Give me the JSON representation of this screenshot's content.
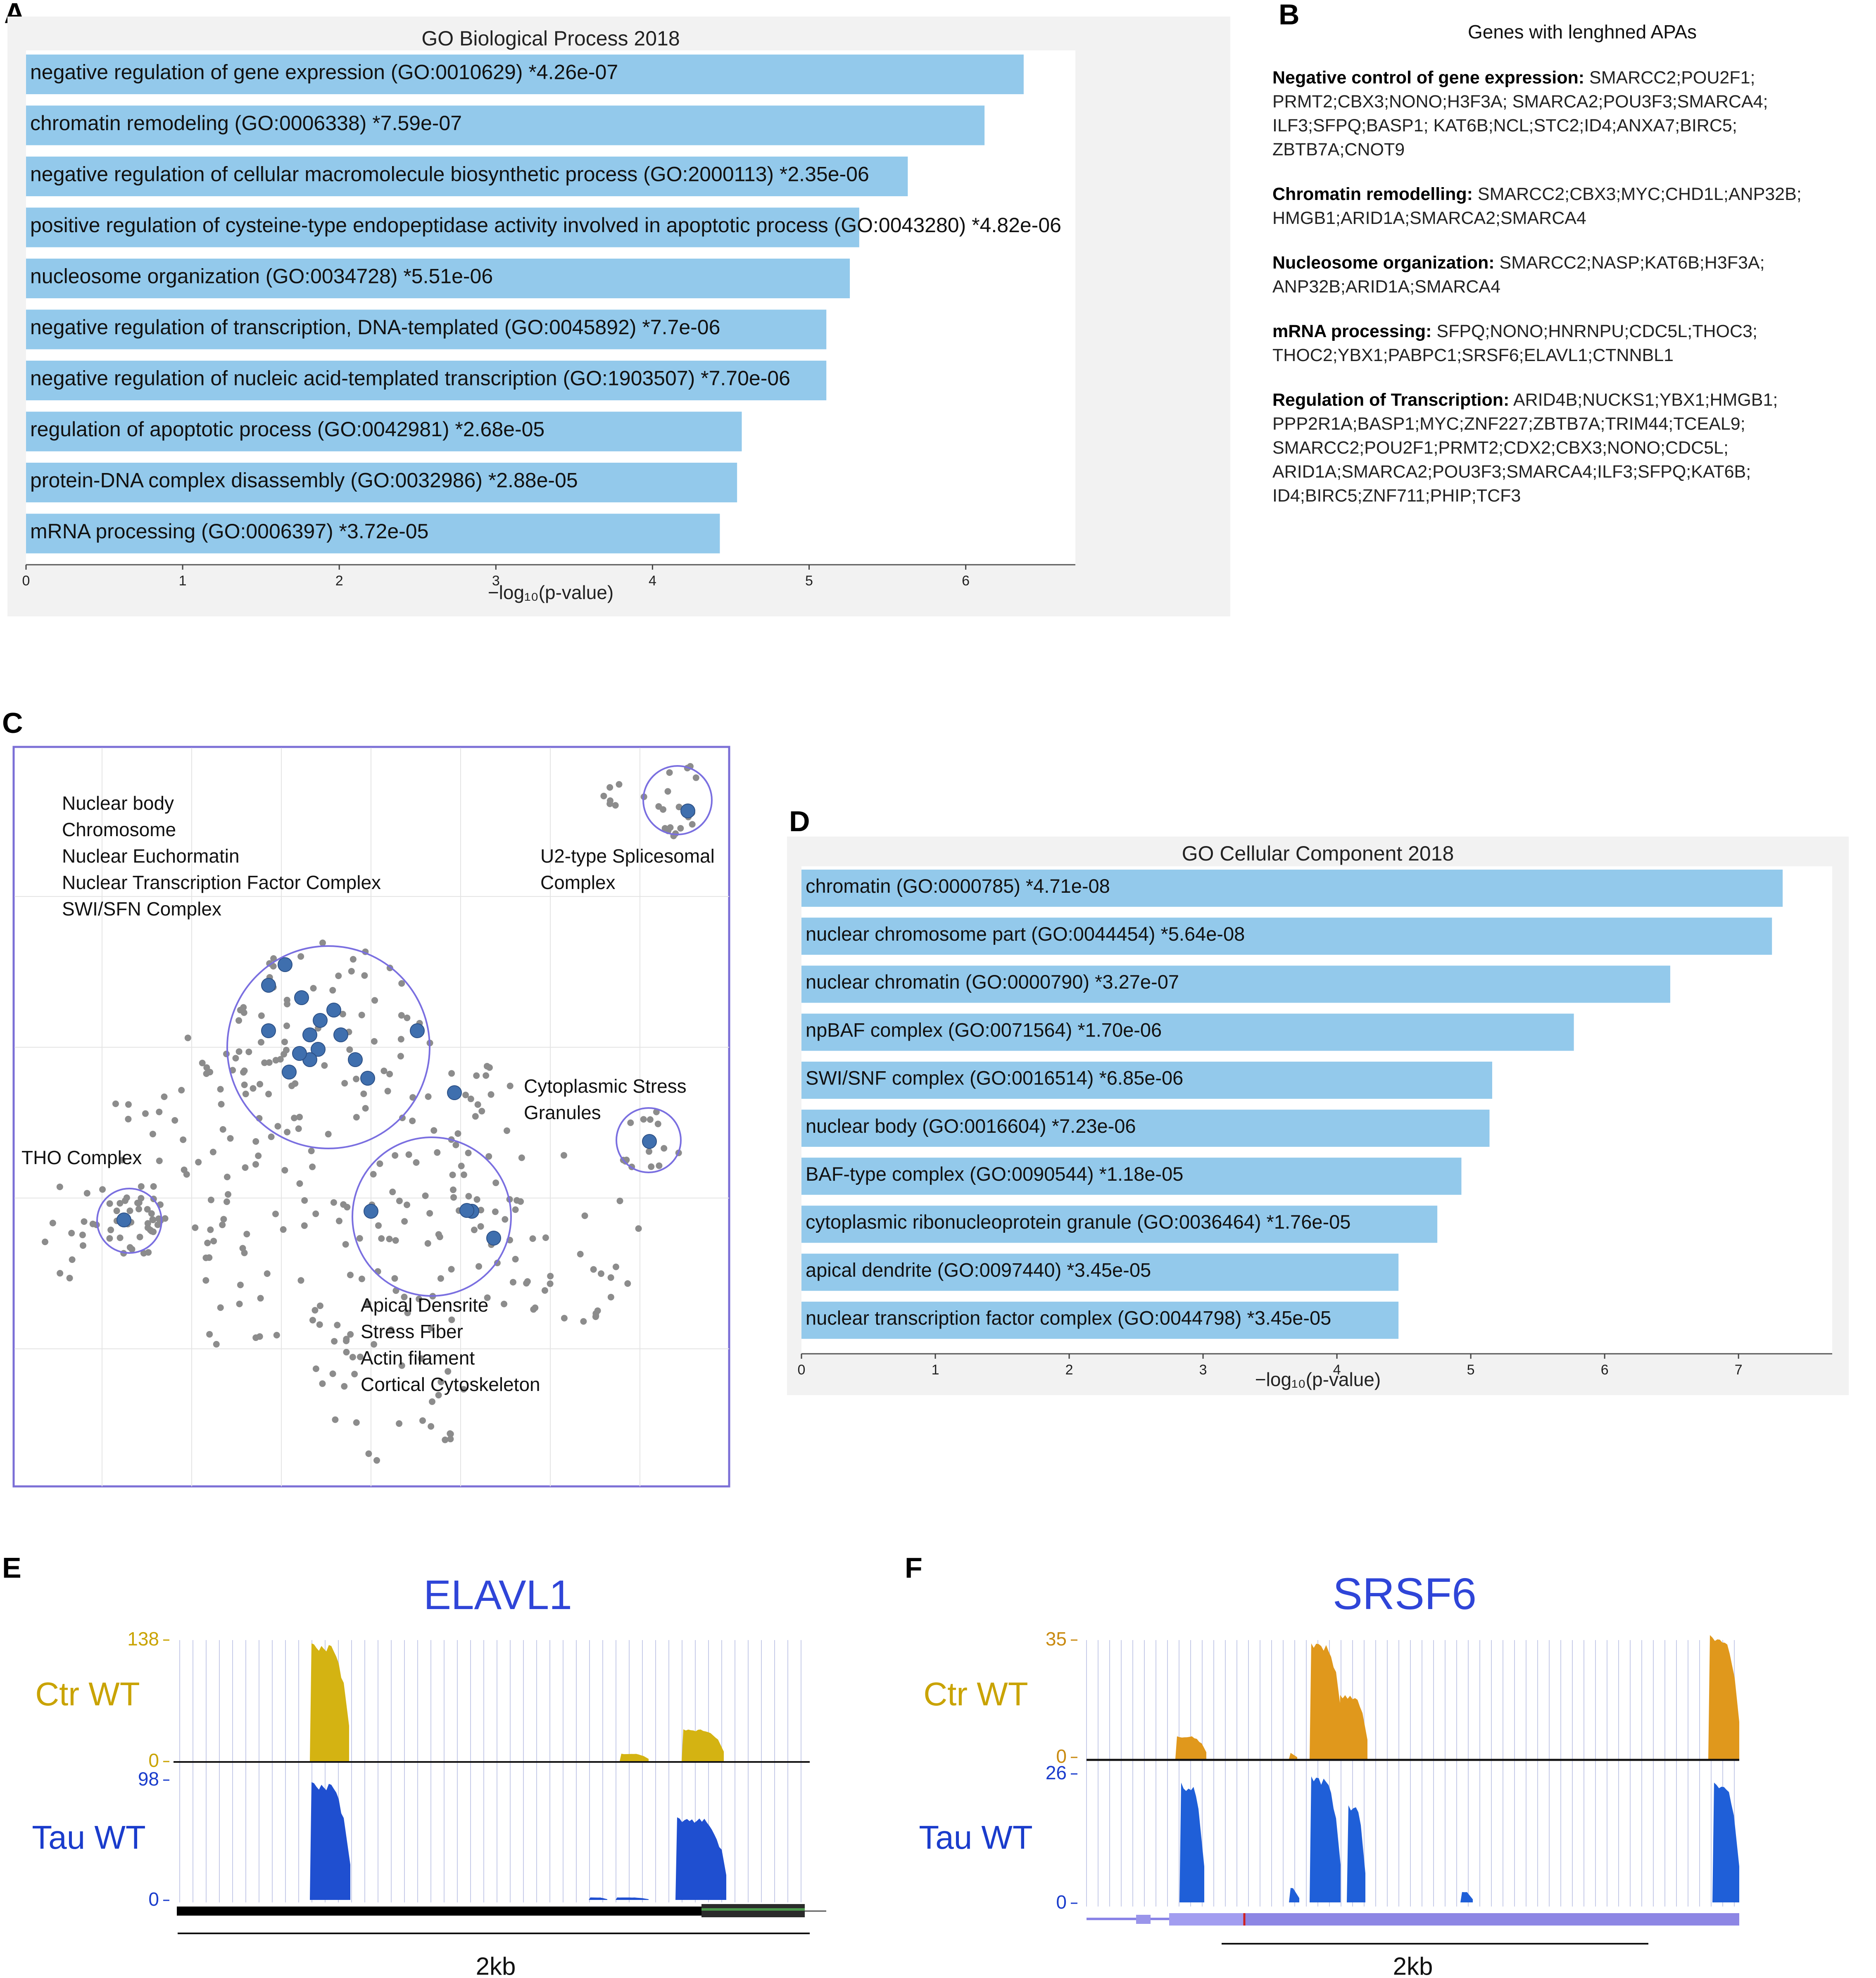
{
  "panel_letters": [
    "A",
    "B",
    "C",
    "D",
    "E",
    "F"
  ],
  "chart_data": [
    {
      "panel": "A",
      "type": "bar",
      "orientation": "horizontal",
      "title": "GO Biological Process 2018",
      "xlabel": "−log₁₀(p-value)",
      "xlim": [
        0,
        6.7
      ],
      "xticks": [
        "0",
        "1",
        "2",
        "3",
        "4",
        "5",
        "6"
      ],
      "categories": [
        "negative regulation of gene expression (GO:0010629)  *4.26e-07",
        "chromatin remodeling (GO:0006338)  *7.59e-07",
        "negative regulation of cellular macromolecule biosynthetic process (GO:2000113)  *2.35e-06",
        "positive regulation of cysteine-type endopeptidase activity involved in apoptotic process (GO:0043280)  *4.82e-06",
        "nucleosome organization (GO:0034728)  *5.51e-06",
        "negative regulation of transcription, DNA-templated (GO:0045892)  *7.7e-06",
        "negative regulation of nucleic acid-templated transcription (GO:1903507)  *7.70e-06",
        "regulation of apoptotic process (GO:0042981)  *2.68e-05",
        "protein-DNA complex disassembly (GO:0032986)  *2.88e-05",
        "mRNA processing (GO:0006397)  *3.72e-05"
      ],
      "values": [
        6.37,
        6.12,
        5.63,
        5.32,
        5.26,
        5.11,
        5.11,
        4.57,
        4.54,
        4.43
      ]
    },
    {
      "panel": "D",
      "type": "bar",
      "orientation": "horizontal",
      "title": "GO Cellular Component 2018",
      "xlabel": "−log₁₀(p-value)",
      "xlim": [
        0,
        7.7
      ],
      "xticks": [
        "0",
        "1",
        "2",
        "3",
        "4",
        "5",
        "6",
        "7"
      ],
      "categories": [
        "chromatin (GO:0000785)  *4.71e-08",
        "nuclear chromosome part (GO:0044454)  *5.64e-08",
        "nuclear chromatin (GO:0000790)  *3.27e-07",
        "npBAF complex (GO:0071564)  *1.70e-06",
        "SWI/SNF complex (GO:0016514)  *6.85e-06",
        "nuclear body (GO:0016604)  *7.23e-06",
        "BAF-type complex (GO:0090544)  *1.18e-05",
        "cytoplasmic ribonucleoprotein granule (GO:0036464)  *1.76e-05",
        "apical dendrite (GO:0097440)  *3.45e-05",
        "nuclear transcription factor complex (GO:0044798)  *3.45e-05"
      ],
      "values": [
        7.33,
        7.25,
        6.49,
        5.77,
        5.16,
        5.14,
        4.93,
        4.75,
        4.46,
        4.46
      ]
    },
    {
      "panel": "C",
      "type": "scatter",
      "title": "",
      "cluster_labels": [
        [
          "Nuclear body",
          "Chromosome",
          "Nuclear Euchormatin",
          "Nuclear Transcription Factor Complex",
          "SWI/SFN Complex"
        ],
        [
          "U2-type Splicesomal",
          "Complex"
        ],
        [
          "Cytoplasmic Stress",
          "Granules"
        ],
        [
          "THO Complex"
        ],
        [
          "Apical Densrite",
          "Stress Fiber",
          "Actin filament",
          "Cortical Cytoskeleton"
        ]
      ]
    },
    {
      "panel": "E",
      "type": "area",
      "gene": "ELAVL1",
      "tracks": [
        {
          "name": "Ctr WT",
          "ymax": "138",
          "ymin": "0",
          "color": "#d4b312"
        },
        {
          "name": "Tau WT",
          "ymax": "98",
          "ymin": "0",
          "color": "#1f4fd0"
        }
      ],
      "scale_label": "2kb"
    },
    {
      "panel": "F",
      "type": "area",
      "gene": "SRSF6",
      "tracks": [
        {
          "name": "Ctr WT",
          "ymax": "35",
          "ymin": "0",
          "color": "#e0981c"
        },
        {
          "name": "Tau WT",
          "ymax": "26",
          "ymin": "0",
          "color": "#1f5fd8"
        }
      ],
      "scale_label": "2kb"
    }
  ],
  "panel_b": {
    "heading": "Genes with lenghned APAs",
    "groups": [
      {
        "term": "Negative control of gene expression:",
        "genes": " SMARCC2;POU2F1; PRMT2;CBX3;NONO;H3F3A; SMARCA2;POU3F3;SMARCA4; ILF3;SFPQ;BASP1; KAT6B;NCL;STC2;ID4;ANXA7;BIRC5; ZBTB7A;CNOT9"
      },
      {
        "term": "Chromatin remodelling:",
        "genes": " SMARCC2;CBX3;MYC;CHD1L;ANP32B; HMGB1;ARID1A;SMARCA2;SMARCA4"
      },
      {
        "term": "Nucleosome organization:",
        "genes": " SMARCC2;NASP;KAT6B;H3F3A; ANP32B;ARID1A;SMARCA4"
      },
      {
        "term": "mRNA processing:",
        "genes": " SFPQ;NONO;HNRNPU;CDC5L;THOC3; THOC2;YBX1;PABPC1;SRSF6;ELAVL1;CTNNBL1"
      },
      {
        "term": "Regulation of Transcription:",
        "genes": " ARID4B;NUCKS1;YBX1;HMGB1; PPP2R1A;BASP1;MYC;ZNF227;ZBTB7A;TRIM44;TCEAL9; SMARCC2;POU2F1;PRMT2;CDX2;CBX3;NONO;CDC5L; ARID1A;SMARCA2;POU3F3;SMARCA4;ILF3;SFPQ;KAT6B; ID4;BIRC5;ZNF711;PHIP;TCF3"
      }
    ]
  },
  "colors": {
    "bar": "#93c9eb",
    "panel_bg": "#f2f2f2",
    "network_border": "#7b6fd6",
    "cluster_circle": "#7a6fe0",
    "node_gray": "#8c8c8c",
    "node_blue": "#3f6fae",
    "gene_title": "#2f45d8",
    "ctr_yellow": "#d4b312",
    "ctr_orange": "#e0981c",
    "tau_blue": "#1f4fd0"
  }
}
